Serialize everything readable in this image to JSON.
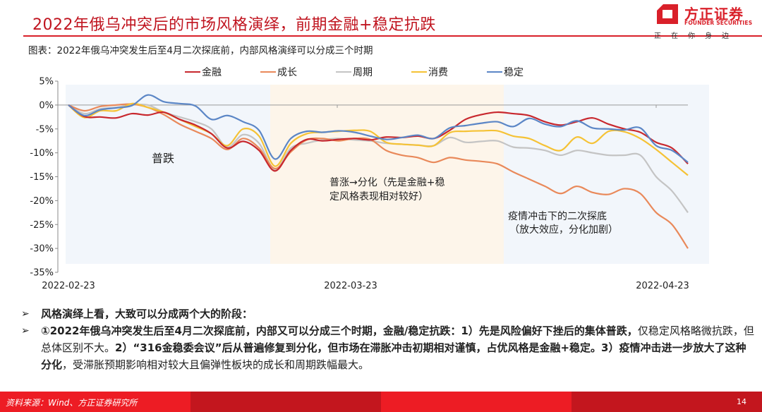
{
  "header": {
    "title": "2022年俄乌冲突后的市场风格演绎，前期金融+稳定抗跌",
    "subtitle": "图表：2022年俄乌冲突发生后至4月二次探底前，内部风格演绎可以分成三个时期"
  },
  "logo": {
    "name_cn": "方正证券",
    "name_en": "FOUNDER SECURITIES",
    "slogan": "正在你身边",
    "color": "#d9202a"
  },
  "colors": {
    "accent": "#d9202a",
    "shade_blue": "#f2f6fb",
    "shade_beige": "#fdf5ea"
  },
  "chart_data": {
    "type": "line",
    "title": "",
    "xlabel": "",
    "ylabel": "",
    "ylim": [
      -35,
      5
    ],
    "yticks": [
      5,
      0,
      -5,
      -10,
      -15,
      -20,
      -25,
      -30,
      -35
    ],
    "ytick_labels": [
      "5%",
      "0%",
      "-5%",
      "-10%",
      "-15%",
      "-20%",
      "-25%",
      "-30%",
      "-35%"
    ],
    "xtick_labels": [
      "2022-02-23",
      "2022-03-23",
      "2022-04-23"
    ],
    "xtick_positions": [
      0,
      0.465,
      0.965
    ],
    "grid": false,
    "legend_position": "top",
    "x": [
      0,
      1,
      2,
      3,
      4,
      5,
      6,
      7,
      8,
      9,
      10,
      11,
      12,
      13,
      14,
      15,
      16,
      17,
      18,
      19,
      20,
      21,
      22,
      23,
      24,
      25,
      26,
      27,
      28,
      29,
      30,
      31,
      32,
      33,
      34,
      35,
      36,
      37,
      38,
      39
    ],
    "series": [
      {
        "name": "金融",
        "color": "#c8282e",
        "values": [
          0,
          -2.4,
          -2.5,
          -2.7,
          -1.8,
          -2.1,
          -1.5,
          -3.0,
          -4.2,
          -6.0,
          -9.0,
          -7.6,
          -9.5,
          -13.8,
          -9.5,
          -7.2,
          -7.5,
          -7.2,
          -7.0,
          -7.3,
          -6.7,
          -6.8,
          -6.5,
          -7.0,
          -5.3,
          -3.0,
          -2.0,
          -1.5,
          -1.8,
          -2.2,
          -3.5,
          -4.2,
          -3.5,
          -2.7,
          -4.0,
          -5.0,
          -5.7,
          -7.8,
          -9.0,
          -12.3
        ]
      },
      {
        "name": "成长",
        "color": "#e9895a",
        "values": [
          0,
          -1.2,
          -0.3,
          0,
          0.2,
          -0.5,
          -2.0,
          -4.0,
          -5.5,
          -7.0,
          -9.3,
          -7.0,
          -9.0,
          -13.3,
          -9.8,
          -7.3,
          -7.0,
          -7.5,
          -7.0,
          -7.2,
          -9.5,
          -10.5,
          -11.0,
          -12.0,
          -11.0,
          -11.5,
          -11.8,
          -12.3,
          -14.0,
          -15.5,
          -17.0,
          -18.5,
          -17.0,
          -18.3,
          -18.7,
          -17.5,
          -18.5,
          -22.5,
          -25.0,
          -30.0
        ]
      },
      {
        "name": "周期",
        "color": "#c4c4c4",
        "values": [
          0,
          -1.8,
          -0.8,
          -0.5,
          0,
          0,
          -1.5,
          -2.5,
          -3.5,
          -5.0,
          -8.8,
          -6.2,
          -8.0,
          -13.5,
          -9.0,
          -8.0,
          -7.3,
          -7.0,
          -7.3,
          -7.5,
          -8.0,
          -8.2,
          -8.4,
          -8.5,
          -6.8,
          -7.8,
          -7.6,
          -7.5,
          -8.8,
          -9.0,
          -9.5,
          -10.5,
          -9.5,
          -10.0,
          -10.5,
          -10.5,
          -10.5,
          -15.0,
          -18.0,
          -22.5
        ]
      },
      {
        "name": "消费",
        "color": "#f5c235",
        "values": [
          0,
          -2.6,
          -1.2,
          -1.2,
          0.3,
          -0.5,
          -1.5,
          -3.0,
          -4.5,
          -6.0,
          -8.5,
          -5.0,
          -6.5,
          -12.8,
          -8.0,
          -6.0,
          -5.7,
          -5.5,
          -5.3,
          -5.5,
          -7.8,
          -8.2,
          -8.4,
          -8.5,
          -5.8,
          -5.5,
          -5.4,
          -5.4,
          -6.5,
          -7.0,
          -8.5,
          -9.5,
          -6.7,
          -8.0,
          -5.5,
          -5.6,
          -7.0,
          -9.3,
          -12.0,
          -14.7
        ]
      },
      {
        "name": "稳定",
        "color": "#5b86c6",
        "values": [
          0,
          -2.2,
          -1.0,
          -0.6,
          -0.1,
          2.1,
          0.7,
          0.3,
          -0.2,
          -3.0,
          -2.2,
          -3.5,
          -5.3,
          -11.3,
          -7.0,
          -5.5,
          -5.7,
          -5.4,
          -5.7,
          -6.5,
          -7.2,
          -6.8,
          -6.3,
          -7.0,
          -4.8,
          -4.3,
          -3.8,
          -3.5,
          -4.5,
          -2.8,
          -4.0,
          -4.5,
          -3.3,
          -4.8,
          -5.0,
          -5.2,
          -4.8,
          -8.5,
          -9.5,
          -12.0
        ]
      }
    ],
    "regions": [
      {
        "label": "普跌",
        "from": 0,
        "to": 13,
        "color": "#f2f6fb"
      },
      {
        "label": "普涨→分化（先是金融+稳定风格表现相对较好）",
        "from": 13,
        "to": 28,
        "color": "#fdf5ea"
      },
      {
        "label": "疫情冲击下的二次探底（放大效应，分化加剧）",
        "from": 28,
        "to": 39,
        "color": "#f2f6fb"
      }
    ]
  },
  "legend": [
    {
      "label": "金融",
      "color": "#c8282e"
    },
    {
      "label": "成长",
      "color": "#e9895a"
    },
    {
      "label": "周期",
      "color": "#c4c4c4"
    },
    {
      "label": "消费",
      "color": "#f5c235"
    },
    {
      "label": "稳定",
      "color": "#5b86c6"
    }
  ],
  "annotations": {
    "period1": "普跌",
    "period2_line1": "普涨→分化（先是金融+稳",
    "period2_line2": "定风格表现相对较好）",
    "period3_line1": "疫情冲击下的二次探底",
    "period3_line2": "（放大效应，分化加剧）"
  },
  "bullets": {
    "marker": "➢",
    "b1": "风格演绎上看，大致可以分成两个大的阶段：",
    "b2_bold1": "①2022年俄乌冲突发生后至4月二次探底前，内部又可以分成三个时期，金融/稳定抗跌：1）先是风险偏好下挫后的集体普跌，",
    "b2_norm1": "仅稳定风格略微抗跌，但总体区别不大。",
    "b2_bold2": "2）“316金稳委会议”后从普遍修复到分化，但市场在滞胀冲击初期相对谨慎，占优风格是金融+稳定。3）疫情冲击进一步放大了这种分化",
    "b2_norm2": "，受滞胀预期影响相对较大且偏弹性板块的成长和周期跌幅最大。"
  },
  "footer": {
    "source": "资料来源：Wind、方正证券研究所",
    "page": "14"
  }
}
